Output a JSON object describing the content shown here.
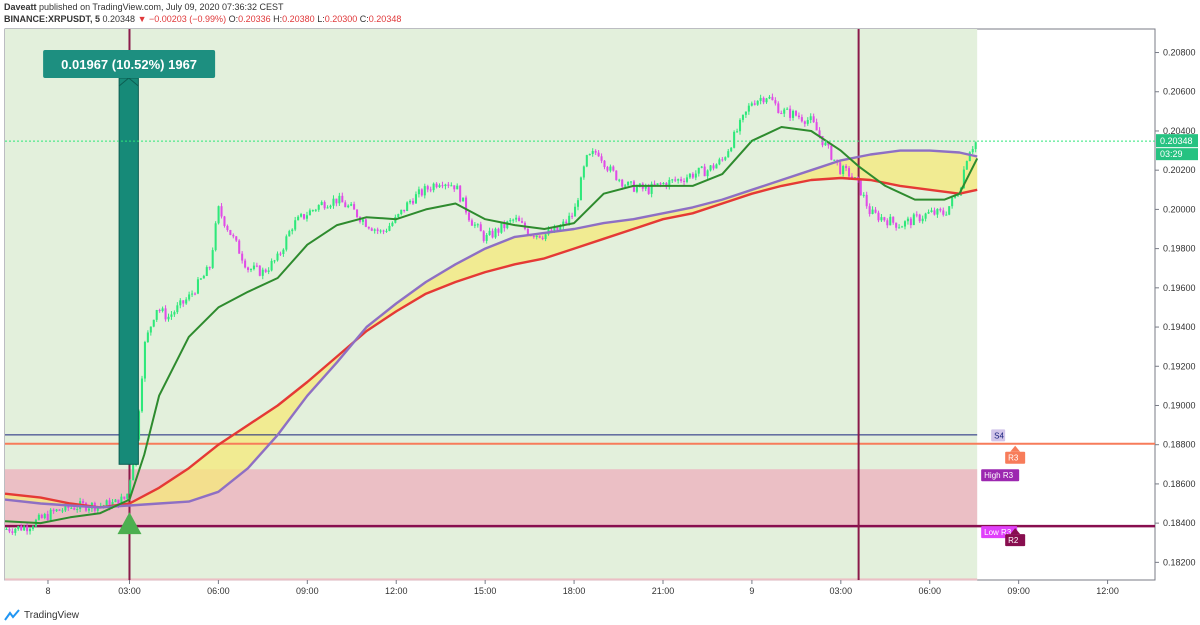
{
  "header": {
    "author": "Daveatt",
    "publish_text": "published on TradingView.com, July 09, 2020 07:36:32 CEST",
    "symbol": "BINANCE:XRPUSDT, 5",
    "last": "0.20348",
    "change": "▼ −0.00203 (−0.99%)",
    "o_label": "O:",
    "o": "0.20336",
    "h_label": "H:",
    "h": "0.20380",
    "l_label": "L:",
    "l": "0.20300",
    "c_label": "C:",
    "c": "0.20348"
  },
  "footer": {
    "brand": "TradingView"
  },
  "chart_data": {
    "type": "candlestick",
    "y_ticks": [
      "0.20800",
      "0.20600",
      "0.20400",
      "0.20200",
      "0.20000",
      "0.19800",
      "0.19600",
      "0.19400",
      "0.19200",
      "0.19000",
      "0.18800",
      "0.18600",
      "0.18400",
      "0.18200"
    ],
    "ylim": [
      0.1811,
      0.2092
    ],
    "x_ticks": [
      {
        "label": "8",
        "t": 0.25
      },
      {
        "label": "03:00",
        "t": 3
      },
      {
        "label": "06:00",
        "t": 6
      },
      {
        "label": "09:00",
        "t": 9
      },
      {
        "label": "12:00",
        "t": 12
      },
      {
        "label": "15:00",
        "t": 15
      },
      {
        "label": "18:00",
        "t": 18
      },
      {
        "label": "21:00",
        "t": 21
      },
      {
        "label": "9",
        "t": 24
      },
      {
        "label": "03:00",
        "t": 27
      },
      {
        "label": "06:00",
        "t": 30
      },
      {
        "label": "09:00",
        "t": 33
      },
      {
        "label": "12:00",
        "t": 36
      }
    ],
    "xlim": [
      -1.2,
      37.6
    ],
    "last_bar_t": 31.6,
    "current_price": {
      "value": 0.20348,
      "label": "0.20348",
      "countdown": "03:29"
    },
    "trade_label": "0.01967 (10.52%) 1967",
    "trade": {
      "t_start": 2.65,
      "t_end": 3.3,
      "from": 0.187,
      "to": 0.2067
    },
    "vertical_lines_t": [
      3.0,
      27.6
    ],
    "levels": [
      {
        "name": "S4",
        "value": 0.1885,
        "color": "#1a237e"
      },
      {
        "name": "R3",
        "value": 0.18805,
        "color": "#f77c5a"
      },
      {
        "name": "High R3",
        "value": 0.18675,
        "color": "#9c27b0"
      },
      {
        "name": "Low R3",
        "value": 0.18385,
        "color": "#e040fb"
      },
      {
        "name": "R2",
        "value": 0.18385,
        "color": "#880e4f"
      }
    ],
    "zones": [
      {
        "name": "pink-zone",
        "from": 0.18385,
        "to": 0.18675,
        "t_end": 31.6
      },
      {
        "name": "green-zone",
        "from": 0.1811,
        "to": 0.2092,
        "t_end": 31.6
      }
    ],
    "candle_path": [
      [
        -1.2,
        0.1837
      ],
      [
        -0.5,
        0.1838
      ],
      [
        0.0,
        0.1842
      ],
      [
        0.5,
        0.1846
      ],
      [
        1.0,
        0.1848
      ],
      [
        1.5,
        0.1849
      ],
      [
        2.0,
        0.1849
      ],
      [
        2.5,
        0.185
      ],
      [
        2.9,
        0.1853
      ],
      [
        3.2,
        0.1878
      ],
      [
        3.5,
        0.193
      ],
      [
        3.9,
        0.195
      ],
      [
        4.3,
        0.1945
      ],
      [
        5.0,
        0.1955
      ],
      [
        5.7,
        0.197
      ],
      [
        6.0,
        0.2
      ],
      [
        6.5,
        0.1985
      ],
      [
        7.0,
        0.197
      ],
      [
        7.5,
        0.1968
      ],
      [
        8.0,
        0.1975
      ],
      [
        8.5,
        0.1992
      ],
      [
        9.0,
        0.1998
      ],
      [
        9.5,
        0.2003
      ],
      [
        10.0,
        0.2005
      ],
      [
        10.5,
        0.2
      ],
      [
        11.0,
        0.1993
      ],
      [
        11.5,
        0.1988
      ],
      [
        12.0,
        0.1995
      ],
      [
        12.5,
        0.2005
      ],
      [
        13.0,
        0.201
      ],
      [
        13.5,
        0.2015
      ],
      [
        14.0,
        0.2012
      ],
      [
        14.5,
        0.1995
      ],
      [
        15.0,
        0.1985
      ],
      [
        15.5,
        0.199
      ],
      [
        16.0,
        0.1995
      ],
      [
        16.5,
        0.1988
      ],
      [
        17.0,
        0.1987
      ],
      [
        17.5,
        0.199
      ],
      [
        18.0,
        0.1998
      ],
      [
        18.4,
        0.2025
      ],
      [
        18.8,
        0.203
      ],
      [
        19.2,
        0.202
      ],
      [
        19.8,
        0.2012
      ],
      [
        20.5,
        0.201
      ],
      [
        21.0,
        0.2013
      ],
      [
        21.5,
        0.2015
      ],
      [
        22.0,
        0.2018
      ],
      [
        22.5,
        0.202
      ],
      [
        23.0,
        0.2025
      ],
      [
        23.5,
        0.204
      ],
      [
        24.0,
        0.2055
      ],
      [
        24.5,
        0.2058
      ],
      [
        25.0,
        0.205
      ],
      [
        25.5,
        0.2048
      ],
      [
        26.0,
        0.2045
      ],
      [
        26.5,
        0.2032
      ],
      [
        27.0,
        0.202
      ],
      [
        27.3,
        0.2018
      ],
      [
        27.6,
        0.2012
      ],
      [
        28.0,
        0.1998
      ],
      [
        28.5,
        0.1995
      ],
      [
        29.0,
        0.1992
      ],
      [
        29.5,
        0.1995
      ],
      [
        30.0,
        0.1998
      ],
      [
        30.5,
        0.1998
      ],
      [
        31.0,
        0.201
      ],
      [
        31.3,
        0.203
      ],
      [
        31.6,
        0.2035
      ]
    ],
    "ma_dark_green": [
      [
        -1.2,
        0.1841
      ],
      [
        0.0,
        0.184
      ],
      [
        1.0,
        0.1843
      ],
      [
        2.0,
        0.1845
      ],
      [
        3.0,
        0.1852
      ],
      [
        3.5,
        0.1875
      ],
      [
        4.0,
        0.1905
      ],
      [
        5.0,
        0.1935
      ],
      [
        6.0,
        0.195
      ],
      [
        7.0,
        0.1958
      ],
      [
        8.0,
        0.1965
      ],
      [
        9.0,
        0.1982
      ],
      [
        10.0,
        0.1992
      ],
      [
        11.0,
        0.1996
      ],
      [
        12.0,
        0.1995
      ],
      [
        13.0,
        0.2
      ],
      [
        14.0,
        0.2003
      ],
      [
        15.0,
        0.1995
      ],
      [
        16.0,
        0.1992
      ],
      [
        17.0,
        0.199
      ],
      [
        18.0,
        0.1993
      ],
      [
        19.0,
        0.2008
      ],
      [
        20.0,
        0.2012
      ],
      [
        21.0,
        0.2012
      ],
      [
        22.0,
        0.2012
      ],
      [
        23.0,
        0.2018
      ],
      [
        24.0,
        0.2035
      ],
      [
        25.0,
        0.2042
      ],
      [
        26.0,
        0.204
      ],
      [
        27.0,
        0.203
      ],
      [
        27.6,
        0.2022
      ],
      [
        28.5,
        0.2012
      ],
      [
        29.5,
        0.2005
      ],
      [
        30.5,
        0.2005
      ],
      [
        31.0,
        0.2008
      ],
      [
        31.6,
        0.2026
      ]
    ],
    "ma_red": [
      [
        -1.2,
        0.1855
      ],
      [
        0.0,
        0.1853
      ],
      [
        1.0,
        0.185
      ],
      [
        2.0,
        0.1848
      ],
      [
        3.0,
        0.185
      ],
      [
        4.0,
        0.1858
      ],
      [
        5.0,
        0.1868
      ],
      [
        6.0,
        0.188
      ],
      [
        7.0,
        0.189
      ],
      [
        8.0,
        0.19
      ],
      [
        9.0,
        0.1912
      ],
      [
        10.0,
        0.1925
      ],
      [
        11.0,
        0.1938
      ],
      [
        12.0,
        0.1948
      ],
      [
        13.0,
        0.1957
      ],
      [
        14.0,
        0.1963
      ],
      [
        15.0,
        0.1968
      ],
      [
        16.0,
        0.1972
      ],
      [
        17.0,
        0.1975
      ],
      [
        18.0,
        0.198
      ],
      [
        19.0,
        0.1985
      ],
      [
        20.0,
        0.199
      ],
      [
        21.0,
        0.1995
      ],
      [
        22.0,
        0.1998
      ],
      [
        23.0,
        0.2003
      ],
      [
        24.0,
        0.2008
      ],
      [
        25.0,
        0.2012
      ],
      [
        26.0,
        0.2015
      ],
      [
        27.0,
        0.2016
      ],
      [
        28.0,
        0.2015
      ],
      [
        29.0,
        0.2012
      ],
      [
        30.0,
        0.201
      ],
      [
        31.0,
        0.2008
      ],
      [
        31.6,
        0.201
      ]
    ],
    "ma_purple": [
      [
        -1.2,
        0.1852
      ],
      [
        0.0,
        0.185
      ],
      [
        1.0,
        0.1849
      ],
      [
        2.0,
        0.1848
      ],
      [
        3.0,
        0.1849
      ],
      [
        4.0,
        0.185
      ],
      [
        5.0,
        0.1851
      ],
      [
        6.0,
        0.1856
      ],
      [
        7.0,
        0.1868
      ],
      [
        8.0,
        0.1885
      ],
      [
        9.0,
        0.1905
      ],
      [
        10.0,
        0.1922
      ],
      [
        11.0,
        0.194
      ],
      [
        12.0,
        0.1952
      ],
      [
        13.0,
        0.1963
      ],
      [
        14.0,
        0.1972
      ],
      [
        15.0,
        0.198
      ],
      [
        16.0,
        0.1986
      ],
      [
        17.0,
        0.1988
      ],
      [
        18.0,
        0.199
      ],
      [
        19.0,
        0.1993
      ],
      [
        20.0,
        0.1995
      ],
      [
        21.0,
        0.1998
      ],
      [
        22.0,
        0.2001
      ],
      [
        23.0,
        0.2005
      ],
      [
        24.0,
        0.201
      ],
      [
        25.0,
        0.2015
      ],
      [
        26.0,
        0.202
      ],
      [
        27.0,
        0.2025
      ],
      [
        28.0,
        0.2028
      ],
      [
        29.0,
        0.203
      ],
      [
        30.0,
        0.203
      ],
      [
        31.0,
        0.2029
      ],
      [
        31.6,
        0.2027
      ]
    ]
  }
}
